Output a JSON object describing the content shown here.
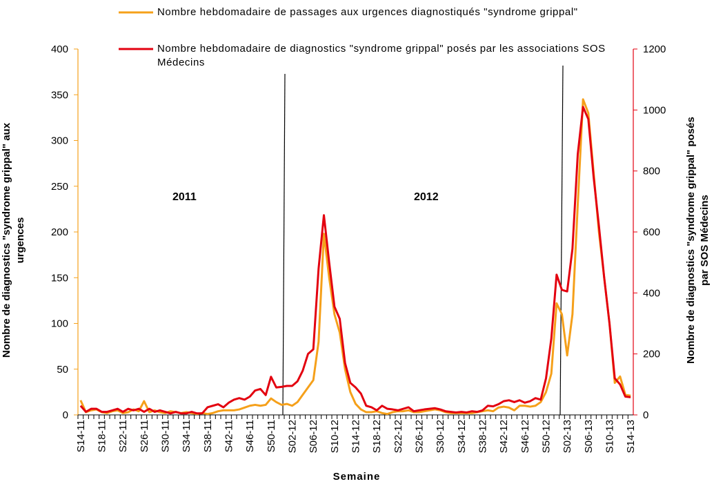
{
  "chart_data": {
    "type": "line",
    "x_label": "Semaine",
    "y_label": "Nombre de diagnostics \"syndrome grippal\" aux urgences",
    "y2_label": "Nombre de diagnostics \"syndrome grippal\" posés par SOS Médecins",
    "annotations": [
      "2011",
      "2012"
    ],
    "legend": "top-left",
    "categories": [
      "S14-11",
      null,
      null,
      null,
      "S18-11",
      null,
      null,
      null,
      "S22-11",
      null,
      null,
      null,
      "S26-11",
      null,
      null,
      null,
      "S30-11",
      null,
      null,
      null,
      "S34-11",
      null,
      null,
      null,
      "S38-11",
      null,
      null,
      null,
      "S42-11",
      null,
      null,
      null,
      "S46-11",
      null,
      null,
      null,
      "S50-11",
      null,
      null,
      null,
      "S02-12",
      null,
      null,
      null,
      "S06-12",
      null,
      null,
      null,
      "S10-12",
      null,
      null,
      null,
      "S14-12",
      null,
      null,
      null,
      "S18-12",
      null,
      null,
      null,
      "S22-12",
      null,
      null,
      null,
      "S26-12",
      null,
      null,
      null,
      "S30-12",
      null,
      null,
      null,
      "S34-12",
      null,
      null,
      null,
      "S38-12",
      null,
      null,
      null,
      "S42-12",
      null,
      null,
      null,
      "S46-12",
      null,
      null,
      null,
      "S50-12",
      null,
      null,
      null,
      "S02-13",
      null,
      null,
      null,
      "S06-13",
      null,
      null,
      null,
      "S10-13",
      null,
      null,
      null,
      "S14-13"
    ],
    "ylim": [
      0,
      400
    ],
    "yticks": [
      0,
      50,
      100,
      150,
      200,
      250,
      300,
      350,
      400
    ],
    "y2lim": [
      0,
      1200
    ],
    "y2ticks": [
      0,
      200,
      400,
      600,
      800,
      1000,
      1200
    ],
    "series": [
      {
        "name": "Nombre hebdomadaire de passages aux urgences diagnostiqués \"syndrome grippal\"",
        "color": "#f5a01a",
        "values": [
          16,
          3,
          5,
          6,
          3,
          2,
          4,
          5,
          2,
          3,
          6,
          4,
          15,
          3,
          5,
          3,
          2,
          4,
          3,
          2,
          3,
          2,
          1,
          2,
          1,
          2,
          4,
          5,
          5,
          5,
          6,
          8,
          10,
          11,
          10,
          11,
          18,
          14,
          11,
          12,
          10,
          14,
          22,
          30,
          38,
          80,
          198,
          150,
          110,
          90,
          50,
          25,
          12,
          6,
          3,
          3,
          4,
          2,
          1,
          3,
          4,
          4,
          5,
          3,
          3,
          4,
          5,
          6,
          5,
          3,
          2,
          2,
          2,
          2,
          2,
          3,
          4,
          5,
          4,
          8,
          9,
          8,
          5,
          10,
          10,
          9,
          10,
          14,
          25,
          45,
          122,
          110,
          65,
          110,
          230,
          345,
          330,
          265,
          200,
          150,
          100,
          35,
          42,
          22,
          21
        ]
      },
      {
        "name": "Nombre hebdomadaire de diagnostics \"syndrome grippal\" posés par les associations SOS Médecins",
        "color": "#e3000f",
        "axis": "y2",
        "values": [
          30,
          10,
          20,
          20,
          10,
          10,
          15,
          20,
          10,
          20,
          15,
          20,
          10,
          20,
          10,
          15,
          10,
          5,
          10,
          5,
          5,
          10,
          5,
          5,
          25,
          30,
          35,
          25,
          40,
          50,
          55,
          50,
          60,
          80,
          85,
          65,
          125,
          90,
          92,
          95,
          95,
          110,
          145,
          200,
          215,
          480,
          655,
          500,
          355,
          315,
          170,
          105,
          90,
          70,
          30,
          25,
          15,
          30,
          20,
          18,
          15,
          20,
          25,
          12,
          15,
          18,
          20,
          22,
          18,
          12,
          10,
          8,
          10,
          8,
          12,
          10,
          15,
          30,
          28,
          35,
          45,
          48,
          42,
          48,
          40,
          45,
          55,
          50,
          120,
          250,
          460,
          410,
          405,
          545,
          855,
          1010,
          970,
          780,
          620,
          450,
          300,
          120,
          100,
          60,
          58
        ]
      }
    ]
  }
}
